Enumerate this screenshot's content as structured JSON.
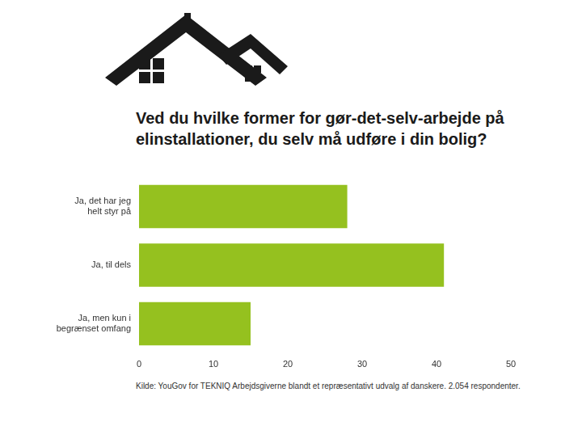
{
  "chart_data": {
    "type": "bar",
    "orientation": "horizontal",
    "title": "Ved du hvilke former for gør-det-selv-arbejde på elinstallationer, du selv må udføre i din bolig?",
    "categories": [
      "Ja, det har jeg helt styr på",
      "Ja, til dels",
      "Ja, men kun i begrænset omfang"
    ],
    "values": [
      28,
      41,
      15
    ],
    "color": "#95c11f",
    "xlim": [
      0,
      50
    ],
    "xticks": [
      0,
      10,
      20,
      30,
      40,
      50
    ],
    "grid": false,
    "source": "Kilde: YouGov for TEKNIQ Arbejdsgiverne blandt et repræsentativt udvalg af danskere. 2.054 respondenter."
  }
}
